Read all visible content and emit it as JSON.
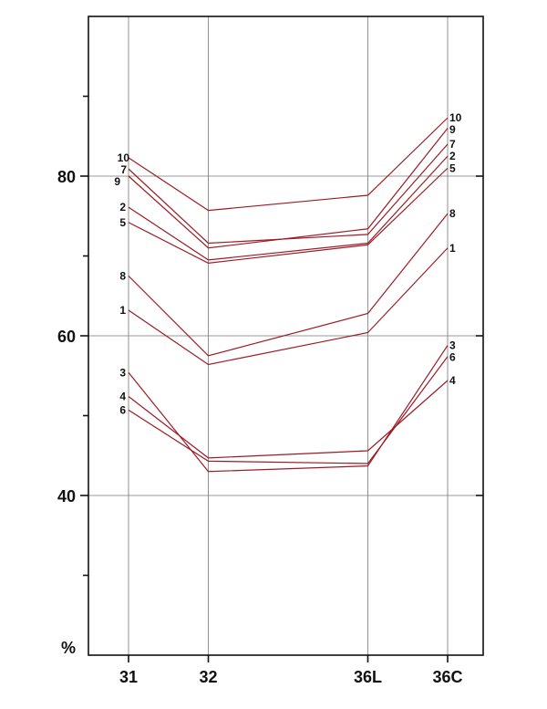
{
  "chart_data": {
    "type": "line",
    "categories": [
      "31",
      "32",
      "36L",
      "36C"
    ],
    "x_positions": [
      1,
      2,
      4,
      5
    ],
    "ylim": [
      20,
      100
    ],
    "y_ticks": [
      40,
      60,
      80
    ],
    "y_minor_ticks": [
      30,
      50,
      70,
      90
    ],
    "ylabel": "%",
    "grid": true,
    "line_color": "#9b1b25",
    "series": [
      {
        "name": "10",
        "values": [
          82.3,
          75.7,
          77.6,
          87.3
        ]
      },
      {
        "name": "9",
        "values": [
          80.0,
          71.0,
          73.4,
          86.0
        ]
      },
      {
        "name": "7",
        "values": [
          80.9,
          71.6,
          72.7,
          84.0
        ]
      },
      {
        "name": "2",
        "values": [
          76.1,
          69.5,
          71.6,
          82.5
        ]
      },
      {
        "name": "5",
        "values": [
          74.2,
          69.1,
          71.4,
          81.0
        ]
      },
      {
        "name": "8",
        "values": [
          67.5,
          57.5,
          62.8,
          75.3
        ]
      },
      {
        "name": "1",
        "values": [
          63.2,
          56.4,
          60.4,
          71.0
        ]
      },
      {
        "name": "3",
        "values": [
          55.4,
          43.0,
          43.7,
          58.8
        ]
      },
      {
        "name": "4",
        "values": [
          52.4,
          44.7,
          45.6,
          54.4
        ]
      },
      {
        "name": "6",
        "values": [
          50.7,
          44.3,
          44.0,
          57.4
        ]
      }
    ],
    "left_labels": [
      "10",
      "7",
      "9",
      "2",
      "5",
      "8",
      "1",
      "3",
      "4",
      "6"
    ],
    "right_labels": [
      "10",
      "9",
      "7",
      "2",
      "5",
      "8",
      "1",
      "3",
      "6",
      "4"
    ]
  }
}
